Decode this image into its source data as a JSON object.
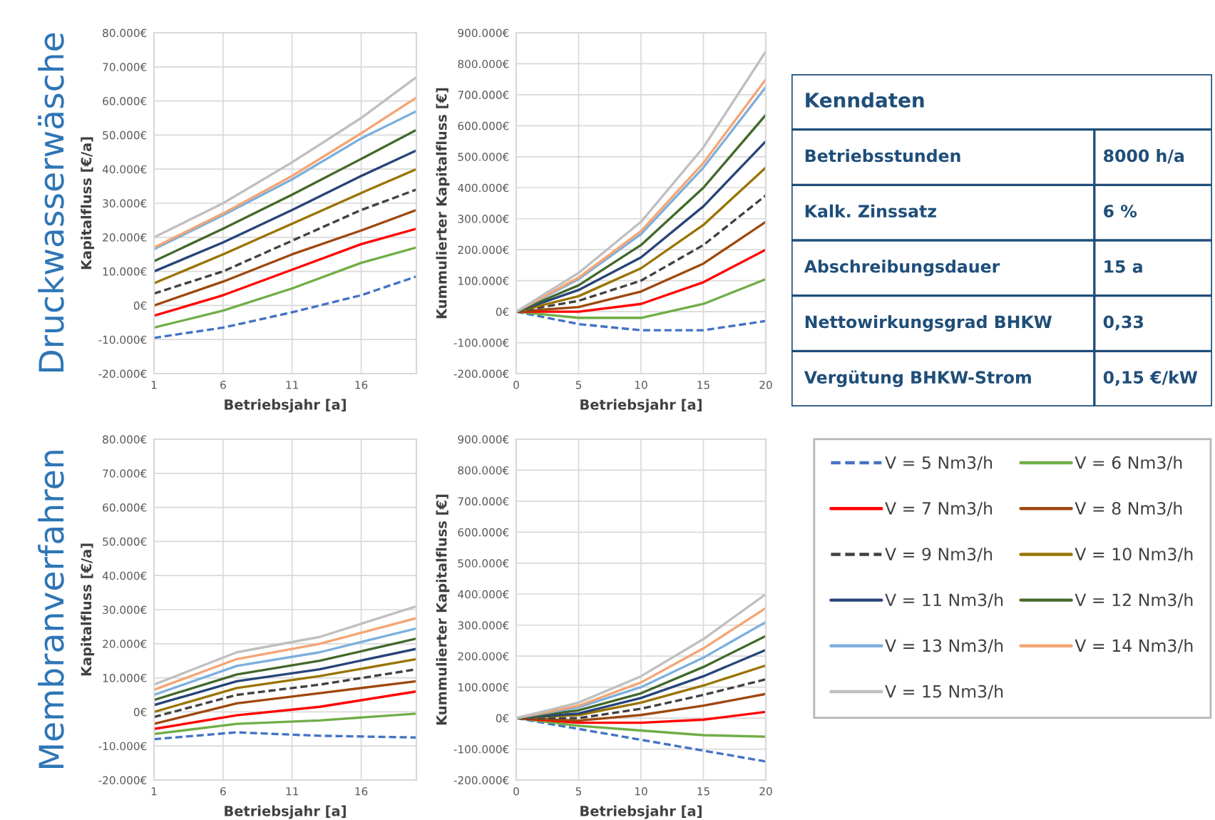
{
  "chart_data": [
    {
      "type": "line",
      "xlabel": "Betriebsjahr [a]",
      "ylabel": "Kapitalfluss [€/a]",
      "annotations": [
        "Druckwasserwäsche"
      ],
      "grid": true,
      "marker": "none",
      "x": [
        1,
        6,
        11,
        16,
        20
      ],
      "xlim": [
        1,
        20
      ],
      "xticks": [
        1,
        6,
        11,
        16
      ],
      "ylim": [
        -20000,
        80000
      ],
      "yticks": [
        {
          "value": -20000,
          "label": "-20.000€"
        },
        {
          "value": -10000,
          "label": "-10.000€"
        },
        {
          "value": 0,
          "label": "0€"
        },
        {
          "value": 10000,
          "label": "10.000€"
        },
        {
          "value": 20000,
          "label": "20.000€"
        },
        {
          "value": 30000,
          "label": "30.000€"
        },
        {
          "value": 40000,
          "label": "40.000€"
        },
        {
          "value": 50000,
          "label": "50.000€"
        },
        {
          "value": 60000,
          "label": "60.000€"
        },
        {
          "value": 70000,
          "label": "70.000€"
        },
        {
          "value": 80000,
          "label": "80.000€"
        }
      ],
      "series": [
        {
          "color": "#4472c4",
          "line_style": "dashed",
          "values": [
            -9500,
            -6500,
            -2000,
            3000,
            8500
          ]
        },
        {
          "color": "#70ad47",
          "line_style": "solid",
          "values": [
            -6500,
            -1500,
            5000,
            12500,
            17000
          ]
        },
        {
          "color": "#ff0000",
          "line_style": "solid",
          "values": [
            -3000,
            3000,
            10500,
            18000,
            22500
          ]
        },
        {
          "color": "#9e480e",
          "line_style": "solid",
          "values": [
            0,
            7000,
            15000,
            22000,
            28000
          ]
        },
        {
          "color": "#404040",
          "line_style": "dashed",
          "values": [
            3500,
            10000,
            19000,
            28000,
            34000
          ]
        },
        {
          "color": "#997300",
          "line_style": "solid",
          "values": [
            6500,
            15000,
            24000,
            33000,
            40000
          ]
        },
        {
          "color": "#264478",
          "line_style": "solid",
          "values": [
            10000,
            18500,
            28000,
            38000,
            45500
          ]
        },
        {
          "color": "#43682b",
          "line_style": "solid",
          "values": [
            13000,
            22500,
            32500,
            43000,
            51500
          ]
        },
        {
          "color": "#7cafdd",
          "line_style": "solid",
          "values": [
            16500,
            26500,
            37000,
            49000,
            57000
          ]
        },
        {
          "color": "#f4a574",
          "line_style": "solid",
          "values": [
            17000,
            27000,
            38000,
            50500,
            61000
          ]
        },
        {
          "color": "#bfbfbf",
          "line_style": "solid",
          "values": [
            20000,
            30000,
            42000,
            55000,
            67000
          ]
        }
      ]
    },
    {
      "type": "line",
      "xlabel": "Betriebsjahr [a]",
      "ylabel": "Kummulierter Kapitalfluss [€]",
      "grid": true,
      "marker": "none",
      "x": [
        0,
        5,
        10,
        15,
        20
      ],
      "xlim": [
        0,
        20
      ],
      "xticks": [
        0,
        5,
        10,
        15,
        20
      ],
      "ylim": [
        -200000,
        900000
      ],
      "yticks": [
        {
          "value": -200000,
          "label": "-200.000€"
        },
        {
          "value": -100000,
          "label": "-100.000€"
        },
        {
          "value": 0,
          "label": "0€"
        },
        {
          "value": 100000,
          "label": "100.000€"
        },
        {
          "value": 200000,
          "label": "200.000€"
        },
        {
          "value": 300000,
          "label": "300.000€"
        },
        {
          "value": 400000,
          "label": "400.000€"
        },
        {
          "value": 500000,
          "label": "500.000€"
        },
        {
          "value": 600000,
          "label": "600.000€"
        },
        {
          "value": 700000,
          "label": "700.000€"
        },
        {
          "value": 800000,
          "label": "800.000€"
        },
        {
          "value": 900000,
          "label": "900.000€"
        }
      ],
      "series": [
        {
          "color": "#4472c4",
          "line_style": "dashed",
          "values": [
            0,
            -40000,
            -60000,
            -60000,
            -30000
          ]
        },
        {
          "color": "#70ad47",
          "line_style": "solid",
          "values": [
            0,
            -20000,
            -20000,
            25000,
            105000
          ]
        },
        {
          "color": "#ff0000",
          "line_style": "solid",
          "values": [
            0,
            0,
            25000,
            95000,
            200000
          ]
        },
        {
          "color": "#9e480e",
          "line_style": "solid",
          "values": [
            0,
            15000,
            65000,
            155000,
            290000
          ]
        },
        {
          "color": "#404040",
          "line_style": "dashed",
          "values": [
            0,
            35000,
            100000,
            215000,
            375000
          ]
        },
        {
          "color": "#997300",
          "line_style": "solid",
          "values": [
            0,
            50000,
            140000,
            280000,
            465000
          ]
        },
        {
          "color": "#264478",
          "line_style": "solid",
          "values": [
            0,
            70000,
            175000,
            340000,
            550000
          ]
        },
        {
          "color": "#43682b",
          "line_style": "solid",
          "values": [
            0,
            85000,
            215000,
            400000,
            635000
          ]
        },
        {
          "color": "#7cafdd",
          "line_style": "solid",
          "values": [
            0,
            105000,
            250000,
            465000,
            725000
          ]
        },
        {
          "color": "#f4a574",
          "line_style": "solid",
          "values": [
            0,
            110000,
            260000,
            480000,
            750000
          ]
        },
        {
          "color": "#bfbfbf",
          "line_style": "solid",
          "values": [
            0,
            125000,
            290000,
            530000,
            840000
          ]
        }
      ]
    },
    {
      "type": "line",
      "xlabel": "Betriebsjahr [a]",
      "ylabel": "Kapitalfluss [€/a]",
      "annotations": [
        "Membranverfahren"
      ],
      "grid": true,
      "marker": "none",
      "x": [
        1,
        7,
        13,
        20
      ],
      "xlim": [
        1,
        20
      ],
      "xticks": [
        1,
        6,
        11,
        16
      ],
      "ylim": [
        -20000,
        80000
      ],
      "yticks": [
        {
          "value": -20000,
          "label": "-20.000€"
        },
        {
          "value": -10000,
          "label": "-10.000€"
        },
        {
          "value": 0,
          "label": "0€"
        },
        {
          "value": 10000,
          "label": "10.000€"
        },
        {
          "value": 20000,
          "label": "20.000€"
        },
        {
          "value": 30000,
          "label": "30.000€"
        },
        {
          "value": 40000,
          "label": "40.000€"
        },
        {
          "value": 50000,
          "label": "50.000€"
        },
        {
          "value": 60000,
          "label": "60.000€"
        },
        {
          "value": 70000,
          "label": "70.000€"
        },
        {
          "value": 80000,
          "label": "80.000€"
        }
      ],
      "series": [
        {
          "color": "#4472c4",
          "line_style": "dashed",
          "values": [
            -8000,
            -6000,
            -7000,
            -7500
          ]
        },
        {
          "color": "#70ad47",
          "line_style": "solid",
          "values": [
            -6500,
            -3500,
            -2500,
            -500
          ]
        },
        {
          "color": "#ff0000",
          "line_style": "solid",
          "values": [
            -5000,
            -1000,
            1500,
            6000
          ]
        },
        {
          "color": "#9e480e",
          "line_style": "solid",
          "values": [
            -3500,
            2500,
            5500,
            9000
          ]
        },
        {
          "color": "#404040",
          "line_style": "dashed",
          "values": [
            -1500,
            5000,
            8000,
            12500
          ]
        },
        {
          "color": "#997300",
          "line_style": "solid",
          "values": [
            0,
            7000,
            10500,
            15500
          ]
        },
        {
          "color": "#264478",
          "line_style": "solid",
          "values": [
            2000,
            9000,
            12500,
            18500
          ]
        },
        {
          "color": "#43682b",
          "line_style": "solid",
          "values": [
            3500,
            11000,
            15000,
            21500
          ]
        },
        {
          "color": "#7cafdd",
          "line_style": "solid",
          "values": [
            5000,
            13500,
            17500,
            24500
          ]
        },
        {
          "color": "#f4a574",
          "line_style": "solid",
          "values": [
            6500,
            15500,
            20000,
            27500
          ]
        },
        {
          "color": "#bfbfbf",
          "line_style": "solid",
          "values": [
            8000,
            17500,
            22000,
            31000
          ]
        }
      ]
    },
    {
      "type": "line",
      "xlabel": "Betriebsjahr [a]",
      "ylabel": "Kummulierter Kapitalfluss [€]",
      "grid": true,
      "marker": "none",
      "legend": "right",
      "x": [
        0,
        5,
        10,
        15,
        20
      ],
      "xlim": [
        0,
        20
      ],
      "xticks": [
        0,
        5,
        10,
        15,
        20
      ],
      "ylim": [
        -200000,
        900000
      ],
      "yticks": [
        {
          "value": -200000,
          "label": "-200.000€"
        },
        {
          "value": -100000,
          "label": "-100.000€"
        },
        {
          "value": 0,
          "label": "0€"
        },
        {
          "value": 100000,
          "label": "100.000€"
        },
        {
          "value": 200000,
          "label": "200.000€"
        },
        {
          "value": 300000,
          "label": "300.000€"
        },
        {
          "value": 400000,
          "label": "400.000€"
        },
        {
          "value": 500000,
          "label": "500.000€"
        },
        {
          "value": 600000,
          "label": "600.000€"
        },
        {
          "value": 700000,
          "label": "700.000€"
        },
        {
          "value": 800000,
          "label": "800.000€"
        },
        {
          "value": 900000,
          "label": "900.000€"
        }
      ],
      "series": [
        {
          "name": "V = 5 Nm3/h",
          "color": "#4472c4",
          "line_style": "dashed",
          "values": [
            0,
            -35000,
            -70000,
            -105000,
            -140000
          ]
        },
        {
          "name": "V = 6 Nm3/h",
          "color": "#70ad47",
          "line_style": "solid",
          "values": [
            0,
            -25000,
            -40000,
            -55000,
            -60000
          ]
        },
        {
          "name": "V = 7 Nm3/h",
          "color": "#ff0000",
          "line_style": "solid",
          "values": [
            0,
            -15000,
            -15000,
            -5000,
            20000
          ]
        },
        {
          "name": "V = 8 Nm3/h",
          "color": "#9e480e",
          "line_style": "solid",
          "values": [
            0,
            -8000,
            10000,
            40000,
            78000
          ]
        },
        {
          "name": "V = 9 Nm3/h",
          "color": "#404040",
          "line_style": "dashed",
          "values": [
            0,
            0,
            30000,
            75000,
            125000
          ]
        },
        {
          "name": "V = 10 Nm3/h",
          "color": "#997300",
          "line_style": "solid",
          "values": [
            0,
            10000,
            50000,
            105000,
            170000
          ]
        },
        {
          "name": "V = 11 Nm3/h",
          "color": "#264478",
          "line_style": "solid",
          "values": [
            0,
            15000,
            65000,
            135000,
            220000
          ]
        },
        {
          "name": "V = 12 Nm3/h",
          "color": "#43682b",
          "line_style": "solid",
          "values": [
            0,
            25000,
            80000,
            165000,
            265000
          ]
        },
        {
          "name": "V = 13 Nm3/h",
          "color": "#7cafdd",
          "line_style": "solid",
          "values": [
            0,
            35000,
            100000,
            195000,
            310000
          ]
        },
        {
          "name": "V = 14 Nm3/h",
          "color": "#f4a574",
          "line_style": "solid",
          "values": [
            0,
            40000,
            115000,
            225000,
            355000
          ]
        },
        {
          "name": "V = 15 Nm3/h",
          "color": "#bfbfbf",
          "line_style": "solid",
          "values": [
            0,
            50000,
            135000,
            255000,
            400000
          ]
        }
      ]
    },
    {
      "type": "other",
      "title": "Kenndaten",
      "annotations": [
        "Betriebsstunden",
        "8000 h/a",
        "Kalk. Zinssatz",
        "6 %",
        "Abschreibungsdauer",
        "15 a",
        "Nettowirkungsgrad BHKW",
        "0,33",
        "Vergütung BHKW-Strom",
        "0,15 €/kW"
      ]
    }
  ]
}
